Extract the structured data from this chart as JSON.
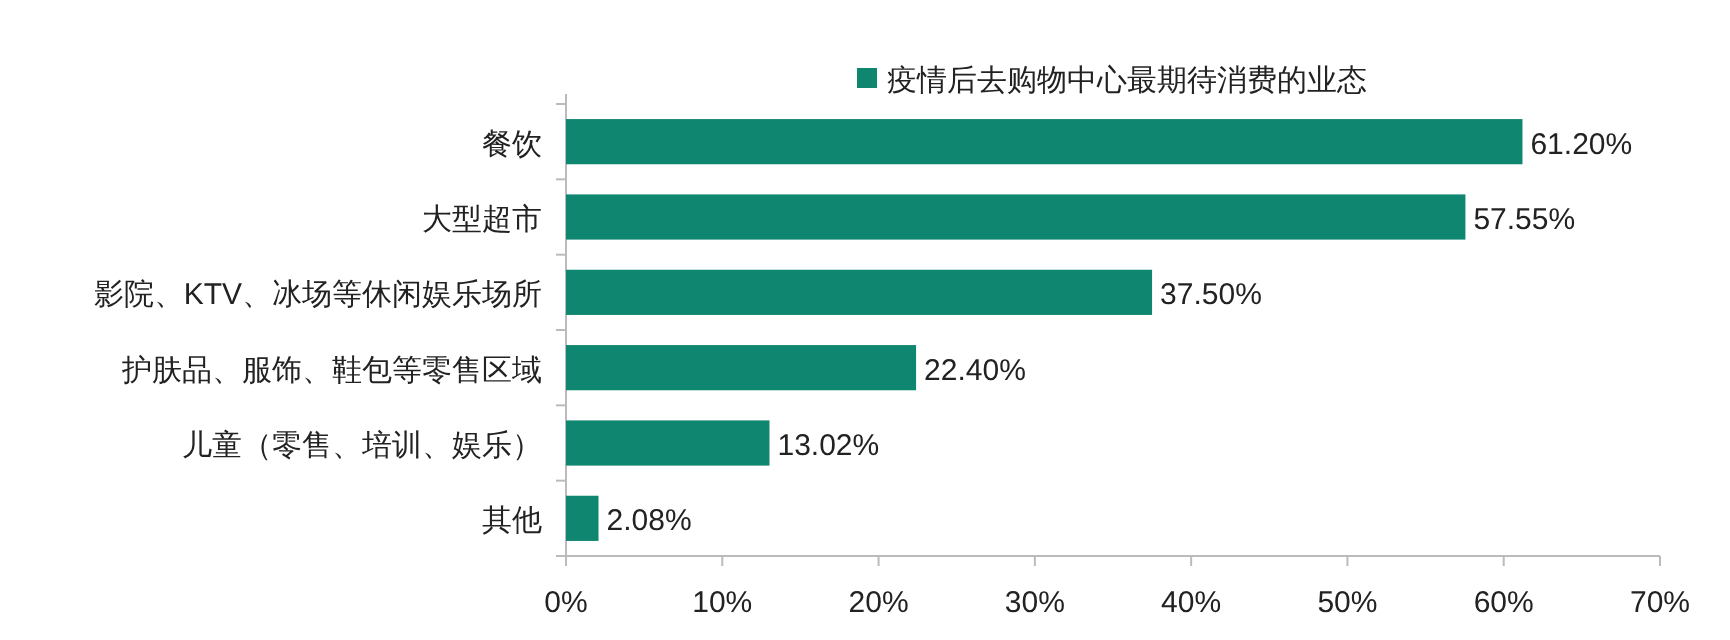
{
  "chart_data": {
    "type": "bar",
    "orientation": "horizontal",
    "legend": "top",
    "categories": [
      "餐饮",
      "大型超市",
      "影院、KTV、冰场等休闲娱乐场所",
      "护肤品、服饰、鞋包等零售区域",
      "儿童（零售、培训、娱乐）",
      "其他"
    ],
    "series": [
      {
        "name": "疫情后去购物中心最期待消费的业态",
        "color": "#0f8670",
        "values": [
          61.2,
          57.55,
          37.5,
          22.4,
          13.02,
          2.08
        ],
        "value_labels": [
          "61.20%",
          "57.55%",
          "37.50%",
          "22.40%",
          "13.02%",
          "2.08%"
        ]
      }
    ],
    "xlim": [
      0,
      70
    ],
    "xticks": [
      {
        "value": 0,
        "label": "0%"
      },
      {
        "value": 10,
        "label": "10%"
      },
      {
        "value": 20,
        "label": "20%"
      },
      {
        "value": 30,
        "label": "30%"
      },
      {
        "value": 40,
        "label": "40%"
      },
      {
        "value": 50,
        "label": "50%"
      },
      {
        "value": 60,
        "label": "60%"
      },
      {
        "value": 70,
        "label": "70%"
      }
    ]
  }
}
